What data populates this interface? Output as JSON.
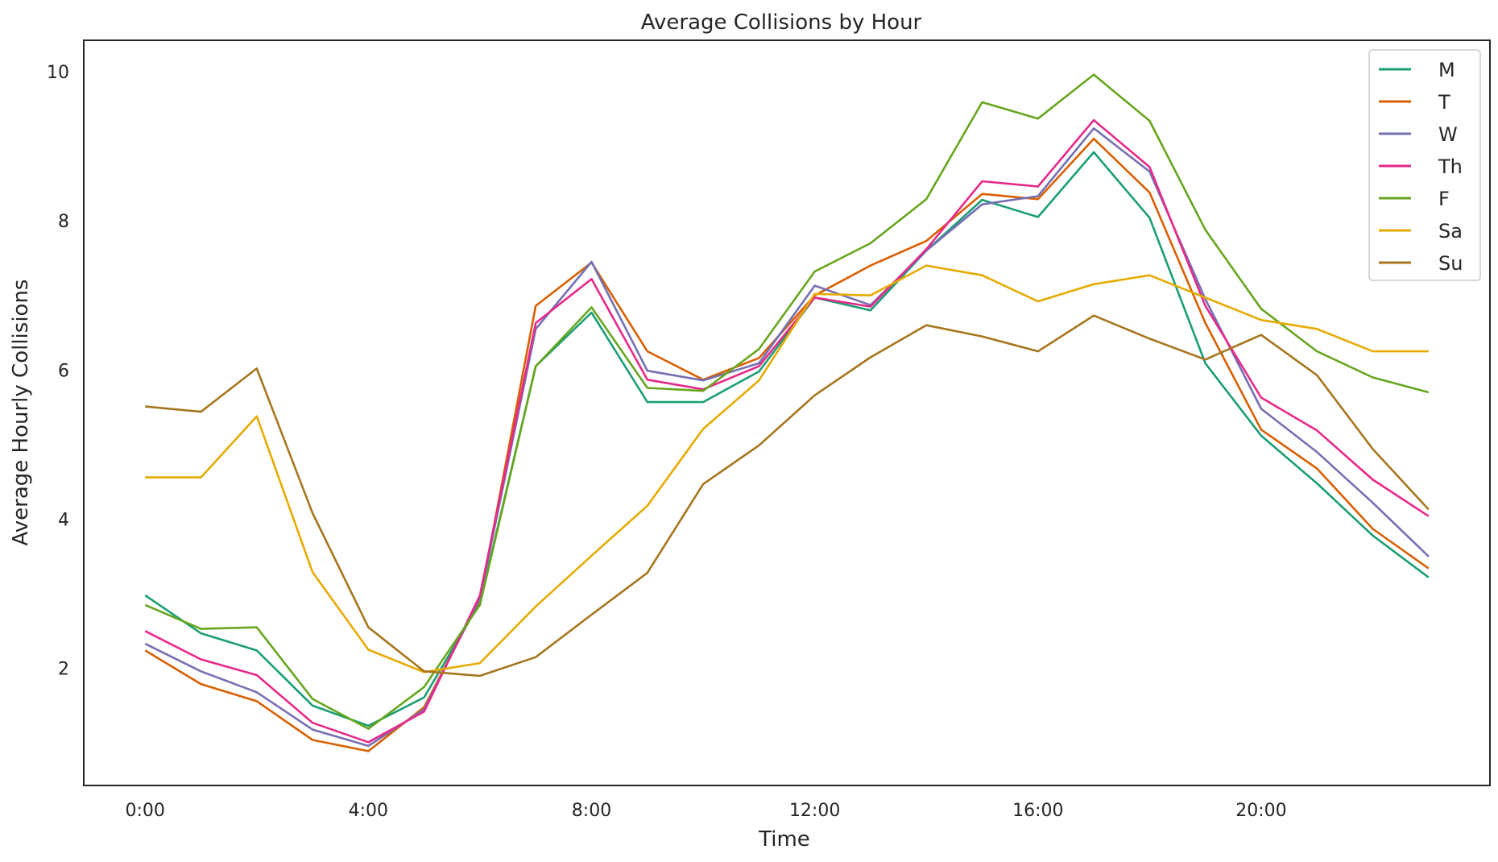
{
  "chart_data": {
    "type": "line",
    "title": "Average Collisions by Hour",
    "xlabel": "Time",
    "ylabel": "Average Hourly Collisions",
    "x": [
      0,
      1,
      2,
      3,
      4,
      5,
      6,
      7,
      8,
      9,
      10,
      11,
      12,
      13,
      14,
      15,
      16,
      17,
      18,
      19,
      20,
      21,
      22,
      23
    ],
    "xlim": [
      -1.1,
      24.1
    ],
    "ylim": [
      0.43,
      10.42
    ],
    "x_ticks": [
      {
        "value": 0,
        "label": "0:00"
      },
      {
        "value": 4,
        "label": "4:00"
      },
      {
        "value": 8,
        "label": "8:00"
      },
      {
        "value": 12,
        "label": "12:00"
      },
      {
        "value": 16,
        "label": "16:00"
      },
      {
        "value": 20,
        "label": "20:00"
      }
    ],
    "y_ticks": [
      2,
      4,
      6,
      8,
      10
    ],
    "grid": false,
    "legend_position": "top-right",
    "series": [
      {
        "name": "M",
        "color": "#1b9e77",
        "values": [
          2.98,
          2.47,
          2.24,
          1.5,
          1.23,
          1.61,
          2.88,
          6.05,
          6.77,
          5.57,
          5.57,
          5.98,
          6.97,
          6.8,
          7.6,
          8.28,
          8.05,
          8.92,
          8.04,
          6.09,
          5.12,
          4.48,
          3.78,
          3.22
        ]
      },
      {
        "name": "T",
        "color": "#d95f02",
        "values": [
          2.24,
          1.79,
          1.56,
          1.04,
          0.89,
          1.48,
          2.92,
          6.86,
          7.44,
          6.25,
          5.87,
          6.16,
          7.0,
          7.4,
          7.73,
          8.36,
          8.29,
          9.1,
          8.38,
          6.63,
          5.2,
          4.68,
          3.87,
          3.34
        ]
      },
      {
        "name": "W",
        "color": "#7570b3",
        "values": [
          2.33,
          1.96,
          1.68,
          1.18,
          0.96,
          1.45,
          2.94,
          6.55,
          7.45,
          5.99,
          5.86,
          6.09,
          7.13,
          6.87,
          7.6,
          8.22,
          8.33,
          9.24,
          8.66,
          6.95,
          5.48,
          4.9,
          4.22,
          3.5
        ]
      },
      {
        "name": "Th",
        "color": "#e7298a",
        "values": [
          2.5,
          2.12,
          1.91,
          1.27,
          1.01,
          1.42,
          2.98,
          6.63,
          7.22,
          5.87,
          5.74,
          6.05,
          6.97,
          6.85,
          7.62,
          8.53,
          8.46,
          9.35,
          8.72,
          6.86,
          5.63,
          5.19,
          4.53,
          4.04
        ]
      },
      {
        "name": "F",
        "color": "#66a61e",
        "values": [
          2.85,
          2.53,
          2.55,
          1.59,
          1.19,
          1.75,
          2.85,
          6.05,
          6.84,
          5.76,
          5.72,
          6.28,
          7.32,
          7.7,
          8.29,
          9.59,
          9.37,
          9.96,
          9.34,
          7.88,
          6.82,
          6.25,
          5.9,
          5.7
        ]
      },
      {
        "name": "Sa",
        "color": "#e6ab02",
        "values": [
          4.56,
          4.56,
          5.38,
          3.29,
          2.25,
          1.95,
          2.07,
          2.83,
          3.51,
          4.18,
          5.21,
          5.86,
          7.02,
          7.0,
          7.4,
          7.27,
          6.92,
          7.15,
          7.27,
          6.97,
          6.67,
          6.55,
          6.25,
          6.25
        ]
      },
      {
        "name": "Su",
        "color": "#a6761d",
        "values": [
          5.51,
          5.44,
          6.02,
          4.08,
          2.55,
          1.96,
          1.9,
          2.15,
          2.72,
          3.28,
          4.47,
          4.99,
          5.66,
          6.17,
          6.6,
          6.45,
          6.25,
          6.73,
          6.42,
          6.14,
          6.47,
          5.93,
          4.94,
          4.13
        ]
      }
    ]
  }
}
